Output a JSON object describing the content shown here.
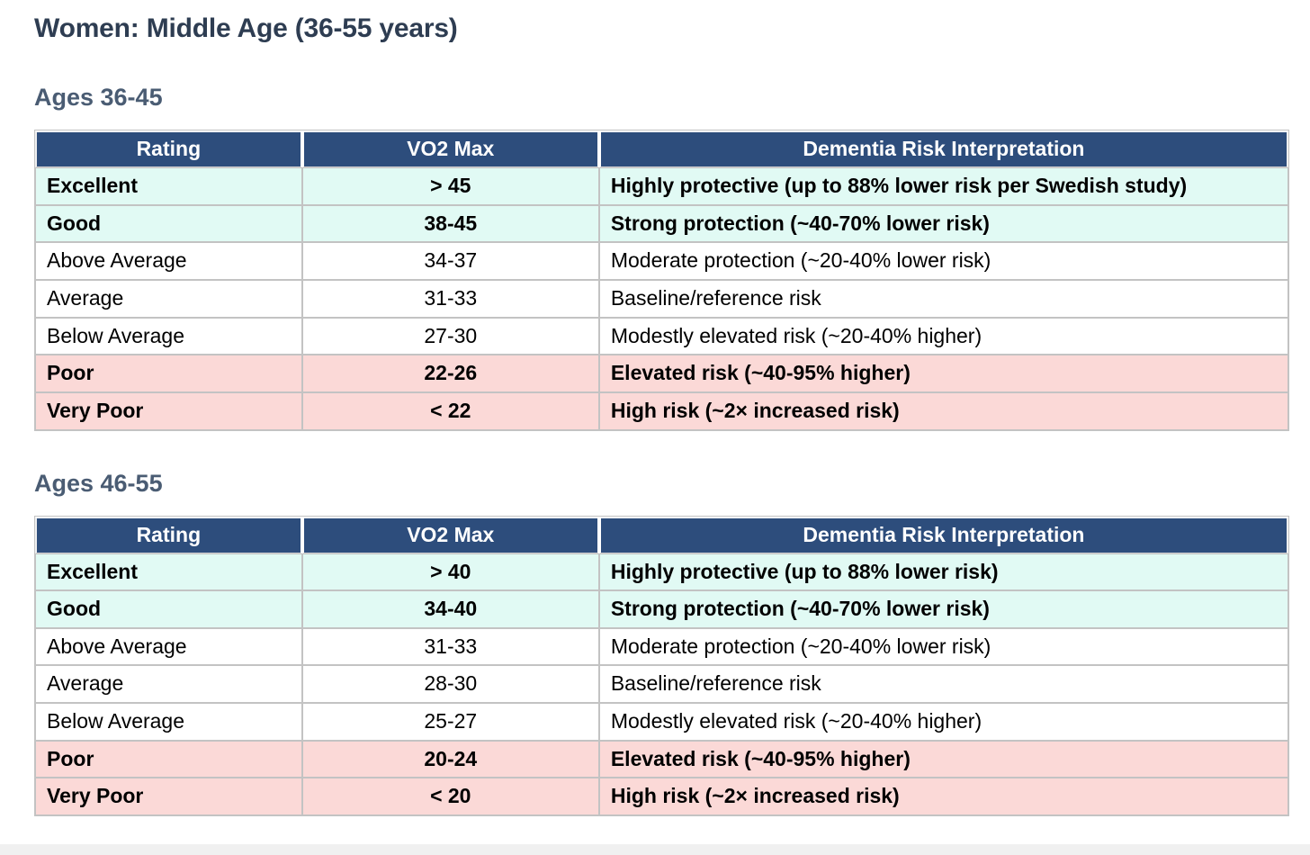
{
  "page": {
    "title": "Women: Middle Age (36-55 years)"
  },
  "columns": [
    "Rating",
    "VO2 Max",
    "Dementia Risk Interpretation"
  ],
  "colors": {
    "header_bg": "#2d4d7c",
    "header_text": "#ffffff",
    "protective_row_bg": "#e1faf4",
    "risk_row_bg": "#fbd9d7",
    "neutral_row_bg": "#ffffff",
    "title_color": "#2e3d52",
    "section_heading_color": "#4a5c73",
    "border_color": "#c3c3c3"
  },
  "sections": [
    {
      "heading": "Ages 36-45",
      "rows": [
        {
          "rating": "Excellent",
          "vo2": "> 45",
          "interpretation": "Highly protective (up to 88% lower risk per Swedish study)",
          "tone": "protective"
        },
        {
          "rating": "Good",
          "vo2": "38-45",
          "interpretation": "Strong protection (~40-70% lower risk)",
          "tone": "protective"
        },
        {
          "rating": "Above Average",
          "vo2": "34-37",
          "interpretation": "Moderate protection (~20-40% lower risk)",
          "tone": "neutral"
        },
        {
          "rating": "Average",
          "vo2": "31-33",
          "interpretation": "Baseline/reference risk",
          "tone": "neutral"
        },
        {
          "rating": "Below Average",
          "vo2": "27-30",
          "interpretation": "Modestly elevated risk (~20-40% higher)",
          "tone": "neutral"
        },
        {
          "rating": "Poor",
          "vo2": "22-26",
          "interpretation": "Elevated risk (~40-95% higher)",
          "tone": "risk"
        },
        {
          "rating": "Very Poor",
          "vo2": "< 22",
          "interpretation": "High risk (~2× increased risk)",
          "tone": "risk"
        }
      ]
    },
    {
      "heading": "Ages 46-55",
      "rows": [
        {
          "rating": "Excellent",
          "vo2": "> 40",
          "interpretation": "Highly protective (up to 88% lower risk)",
          "tone": "protective"
        },
        {
          "rating": "Good",
          "vo2": "34-40",
          "interpretation": "Strong protection (~40-70% lower risk)",
          "tone": "protective"
        },
        {
          "rating": "Above Average",
          "vo2": "31-33",
          "interpretation": "Moderate protection (~20-40% lower risk)",
          "tone": "neutral"
        },
        {
          "rating": "Average",
          "vo2": "28-30",
          "interpretation": "Baseline/reference risk",
          "tone": "neutral"
        },
        {
          "rating": "Below Average",
          "vo2": "25-27",
          "interpretation": "Modestly elevated risk (~20-40% higher)",
          "tone": "neutral"
        },
        {
          "rating": "Poor",
          "vo2": "20-24",
          "interpretation": "Elevated risk (~40-95% higher)",
          "tone": "risk"
        },
        {
          "rating": "Very Poor",
          "vo2": "< 20",
          "interpretation": "High risk (~2× increased risk)",
          "tone": "risk"
        }
      ]
    }
  ]
}
